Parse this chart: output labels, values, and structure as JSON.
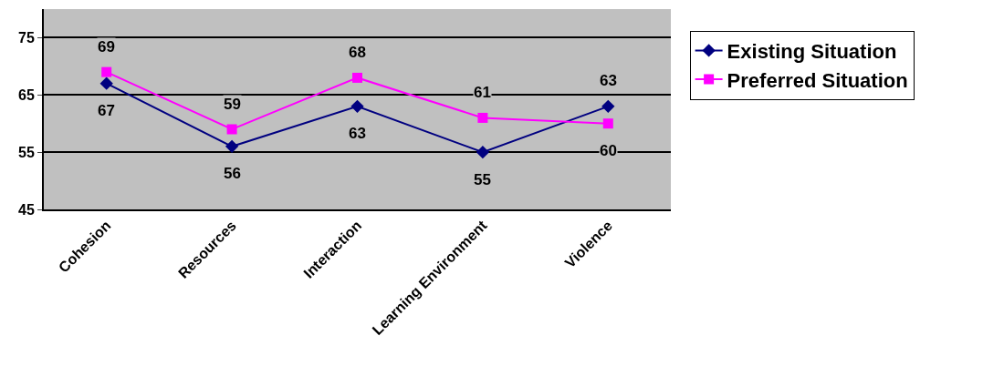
{
  "chart_data": {
    "type": "line",
    "categories": [
      "Cohesion",
      "Resources",
      "Interaction",
      "Learning Environment",
      "Violence"
    ],
    "series": [
      {
        "name": "Existing Situation",
        "color": "#000080",
        "marker": "diamond",
        "values": [
          67,
          56,
          63,
          55,
          63
        ]
      },
      {
        "name": "Preferred Situation",
        "color": "#ff00ff",
        "marker": "square",
        "values": [
          69,
          59,
          68,
          61,
          60
        ]
      }
    ],
    "ylim": [
      45,
      80
    ],
    "yticks": [
      45,
      55,
      65,
      75
    ],
    "grid": "y",
    "legend": "right",
    "data_labels": true
  }
}
